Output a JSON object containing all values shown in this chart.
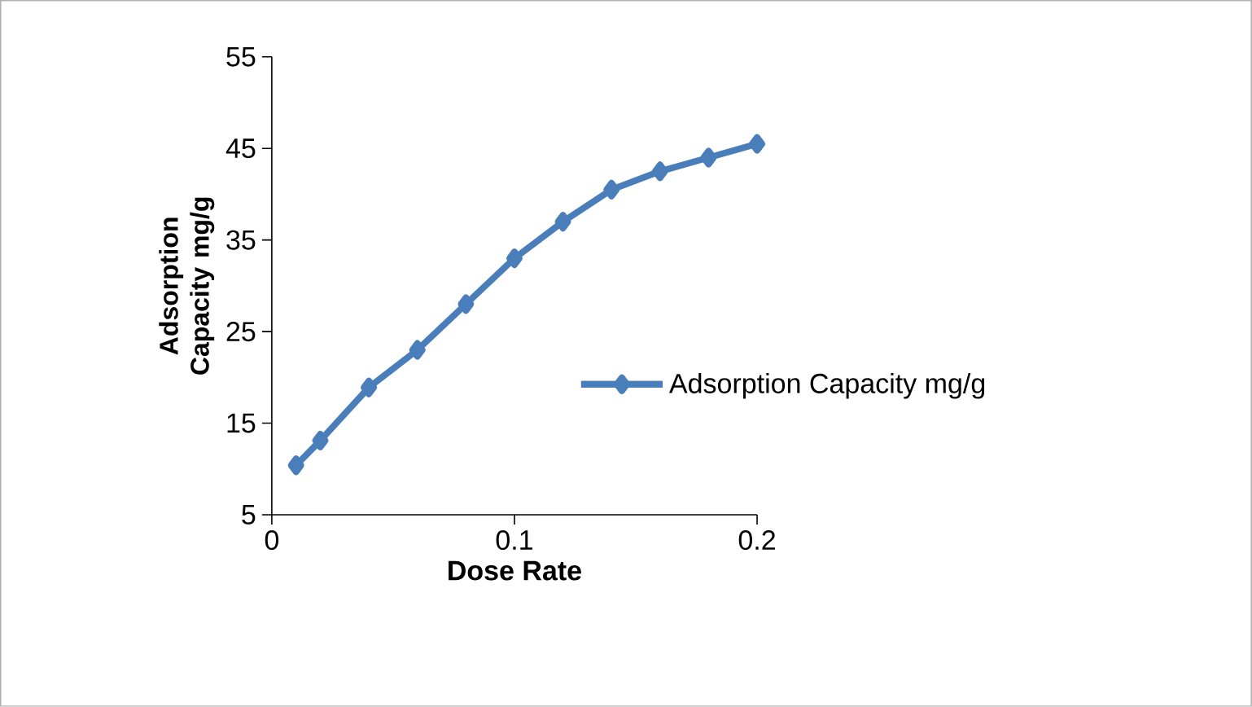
{
  "chart_data": {
    "type": "line",
    "xlabel": "Dose Rate",
    "ylabel": "Adsorption Capacity mg/g",
    "x": [
      0.01,
      0.02,
      0.04,
      0.06,
      0.08,
      0.1,
      0.12,
      0.14,
      0.16,
      0.18,
      0.2
    ],
    "series": [
      {
        "name": "Adsorption Capacity mg/g",
        "color": "#4a7ebb",
        "values": [
          10.4,
          13.1,
          18.9,
          23,
          28,
          33,
          37,
          40.5,
          42.5,
          44,
          45.5
        ]
      }
    ],
    "xlim": [
      0,
      0.2
    ],
    "xticks": [
      0,
      0.1,
      0.2
    ],
    "ylim": [
      5,
      55
    ],
    "yticks": [
      5,
      15,
      25,
      35,
      45,
      55
    ],
    "grid": false,
    "legend": "right",
    "marker": "diamond",
    "line_style": "solid"
  }
}
